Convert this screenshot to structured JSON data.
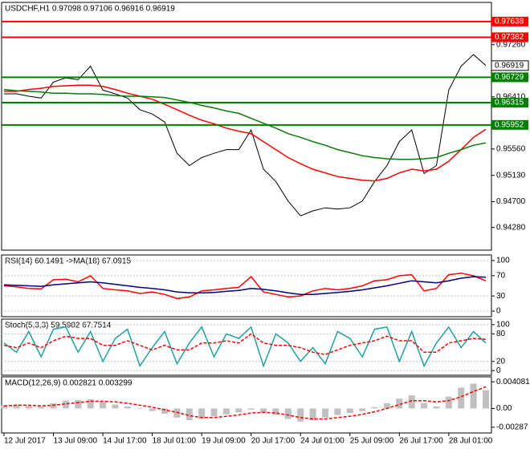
{
  "chart_data": [
    {
      "type": "line",
      "title": "USDCHF,H1  0.97098 0.97106 0.96916 0.96919",
      "ylim": [
        0.9391,
        0.9795
      ],
      "yticks": [
        {
          "value": 0.9726,
          "label": "0.97260"
        },
        {
          "value": 0.9641,
          "label": "0.96410"
        },
        {
          "value": 0.9556,
          "label": "0.95560"
        },
        {
          "value": 0.9513,
          "label": "0.95130"
        },
        {
          "value": 0.947,
          "label": "0.94700"
        },
        {
          "value": 0.9428,
          "label": "0.94280"
        }
      ],
      "levels": [
        {
          "value": 0.97638,
          "color": "#ff0000"
        },
        {
          "value": 0.97382,
          "color": "#ff0000"
        },
        {
          "value": 0.96729,
          "color": "#008000"
        },
        {
          "value": 0.96315,
          "color": "#008000"
        },
        {
          "value": 0.95952,
          "color": "#008000"
        }
      ],
      "last_price": 0.96919,
      "series": [
        {
          "color": "#000000",
          "values": [
            0.9646,
            0.9646,
            0.9642,
            0.9639,
            0.9665,
            0.9672,
            0.9669,
            0.9691,
            0.9652,
            0.9646,
            0.9639,
            0.962,
            0.9613,
            0.96,
            0.9549,
            0.9529,
            0.9542,
            0.9549,
            0.9555,
            0.9555,
            0.9587,
            0.9523,
            0.9503,
            0.9471,
            0.9447,
            0.9455,
            0.946,
            0.9458,
            0.946,
            0.9471,
            0.9503,
            0.9529,
            0.9568,
            0.9587,
            0.9516,
            0.9529,
            0.9652,
            0.9691,
            0.971,
            0.9692
          ]
        },
        {
          "color": "#ff0000",
          "values": [
            0.965,
            0.965,
            0.9653,
            0.9655,
            0.9658,
            0.9659,
            0.966,
            0.966,
            0.9658,
            0.9653,
            0.9647,
            0.9642,
            0.9637,
            0.9629,
            0.962,
            0.9611,
            0.9603,
            0.9597,
            0.959,
            0.9585,
            0.9581,
            0.9568,
            0.9555,
            0.9542,
            0.9532,
            0.9523,
            0.9517,
            0.9511,
            0.9508,
            0.9505,
            0.9504,
            0.9508,
            0.9517,
            0.9523,
            0.952,
            0.9523,
            0.9536,
            0.9555,
            0.9575,
            0.9588
          ]
        },
        {
          "color": "#0a7a0a",
          "values": [
            0.9653,
            0.9651,
            0.965,
            0.9649,
            0.9647,
            0.9647,
            0.9646,
            0.9646,
            0.9645,
            0.9643,
            0.9642,
            0.9642,
            0.9641,
            0.964,
            0.9636,
            0.9632,
            0.9627,
            0.9623,
            0.9618,
            0.9614,
            0.9606,
            0.9598,
            0.959,
            0.9581,
            0.9575,
            0.9568,
            0.9562,
            0.9555,
            0.955,
            0.9545,
            0.9542,
            0.954,
            0.9539,
            0.9539,
            0.954,
            0.9542,
            0.9549,
            0.9555,
            0.9562,
            0.9566
          ]
        }
      ]
    },
    {
      "type": "line",
      "title": "RSI(14) 60.1491  ->MA(18) 67.0915",
      "ylim": [
        -11,
        111
      ],
      "yticks": [
        100,
        70,
        30,
        0
      ],
      "series": [
        {
          "color": "#ff0000",
          "values": [
            50,
            48,
            45,
            44,
            62,
            63,
            58,
            70,
            45,
            42,
            40,
            35,
            38,
            33,
            25,
            28,
            40,
            42,
            45,
            47,
            68,
            38,
            33,
            28,
            30,
            40,
            45,
            42,
            45,
            50,
            60,
            62,
            70,
            72,
            40,
            45,
            72,
            75,
            70,
            60
          ]
        },
        {
          "color": "#000080",
          "values": [
            52,
            51,
            50,
            49,
            52,
            54,
            56,
            58,
            56,
            53,
            50,
            47,
            45,
            42,
            38,
            36,
            36,
            37,
            39,
            41,
            45,
            43,
            40,
            36,
            33,
            33,
            35,
            37,
            39,
            42,
            46,
            50,
            55,
            60,
            58,
            56,
            60,
            65,
            68,
            67
          ]
        }
      ]
    },
    {
      "type": "line",
      "title": "Stoch(5,3,3) 59.5902 67.7514",
      "ylim": [
        -10,
        112
      ],
      "yticks": [
        100,
        80,
        20,
        0
      ],
      "series": [
        {
          "color": "#20a0a0",
          "values": [
            60,
            40,
            85,
            30,
            90,
            95,
            40,
            85,
            20,
            70,
            90,
            10,
            50,
            85,
            15,
            60,
            95,
            30,
            80,
            70,
            95,
            10,
            80,
            60,
            20,
            50,
            15,
            85,
            70,
            30,
            90,
            95,
            20,
            85,
            10,
            60,
            95,
            50,
            85,
            60
          ]
        },
        {
          "color": "#ff0000",
          "dashed": true,
          "values": [
            55,
            50,
            60,
            50,
            65,
            75,
            70,
            70,
            55,
            55,
            65,
            55,
            45,
            55,
            45,
            45,
            60,
            60,
            65,
            60,
            80,
            60,
            55,
            55,
            50,
            40,
            35,
            45,
            55,
            60,
            65,
            75,
            65,
            65,
            40,
            40,
            60,
            65,
            70,
            68
          ]
        }
      ]
    },
    {
      "type": "line",
      "title": "MACD(12,26,9) 0.002821 0.003299",
      "ylim": [
        -0.00375,
        0.00484
      ],
      "yticks": [
        0.004081,
        {
          "value": 0,
          "label": "0.00"
        },
        -0.00287
      ],
      "categories": [
        "12 Jul 2017",
        null,
        null,
        null,
        "13 Jul 09:00",
        null,
        null,
        null,
        "14 Jul 17:00",
        null,
        null,
        null,
        "18 Jul 01:00",
        null,
        null,
        null,
        "19 Jul 09:00",
        null,
        null,
        null,
        "20 Jul 17:00",
        null,
        null,
        null,
        "24 Jul 01:00",
        null,
        null,
        null,
        "25 Jul 09:00",
        null,
        null,
        null,
        "26 Jul 17:00",
        null,
        null,
        null,
        "28 Jul 01:00",
        null,
        null,
        null
      ],
      "series": [
        {
          "type": "bar",
          "color": "#c0c0c0",
          "values": [
            0.0005,
            0.0006,
            0.0004,
            0.0003,
            0.0008,
            0.0012,
            0.0013,
            0.0014,
            0.001,
            0.0006,
            0.0003,
            0,
            -0.0004,
            -0.0008,
            -0.0014,
            -0.0018,
            -0.0016,
            -0.0012,
            -0.0009,
            -0.0006,
            -0.0002,
            -0.0006,
            -0.001,
            -0.0016,
            -0.002,
            -0.0018,
            -0.0014,
            -0.001,
            -0.0007,
            -0.0004,
            0.0002,
            0.0008,
            0.0015,
            0.002,
            0.0008,
            0.0003,
            0.0018,
            0.0032,
            0.0038,
            0.0028
          ]
        },
        {
          "type": "line",
          "color": "#ff0000",
          "dashed": true,
          "values": [
            0.0004,
            0.0005,
            0.0005,
            0.0004,
            0.0005,
            0.0007,
            0.0009,
            0.0011,
            0.0011,
            0.001,
            0.0008,
            0.0005,
            0.0002,
            -0.0002,
            -0.0006,
            -0.0011,
            -0.0014,
            -0.0014,
            -0.0012,
            -0.001,
            -0.0007,
            -0.0006,
            -0.0007,
            -0.001,
            -0.0014,
            -0.0016,
            -0.0016,
            -0.0014,
            -0.0012,
            -0.0009,
            -0.0005,
            0,
            0.0006,
            0.0012,
            0.0012,
            0.001,
            0.0012,
            0.0018,
            0.0026,
            0.0033
          ]
        }
      ]
    }
  ]
}
